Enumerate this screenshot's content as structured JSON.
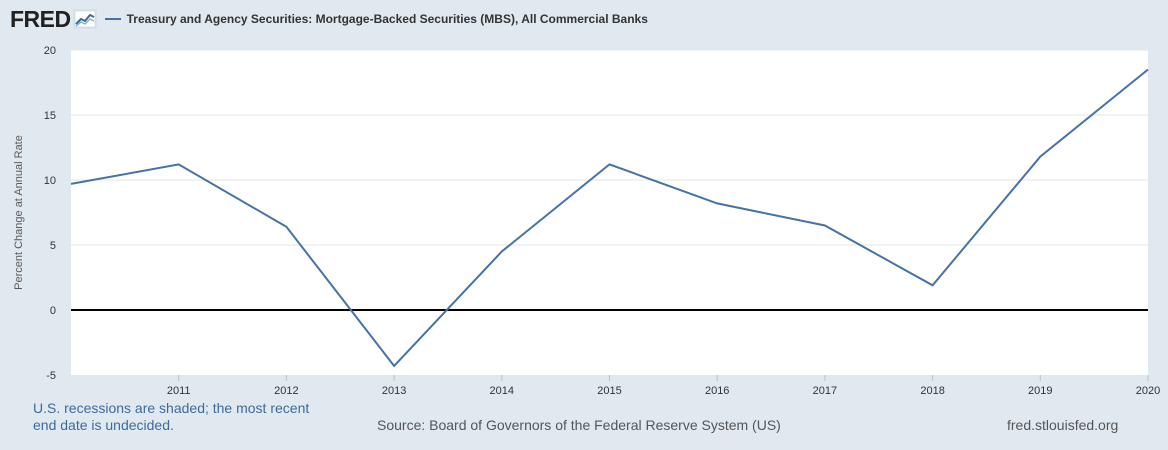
{
  "header": {
    "logo_text": "FRED",
    "logo_mark": "fred-graph-icon"
  },
  "footer": {
    "recession_note": "U.S. recessions are shaded; the most recent end date is undecided.",
    "source": "Source: Board of Governors of the Federal Reserve System (US)",
    "url": "fred.stlouisfed.org"
  },
  "colors": {
    "series": "#4572a7",
    "background": "#e1e9f0",
    "plot": "#ffffff",
    "zero_line": "#000000"
  },
  "chart_data": {
    "type": "line",
    "title": "",
    "xlabel": "",
    "ylabel": "Percent Change at Annual Rate",
    "x": [
      2010,
      2011,
      2012,
      2013,
      2014,
      2015,
      2016,
      2017,
      2018,
      2019,
      2020
    ],
    "x_tick_labels": [
      "2011",
      "2012",
      "2013",
      "2014",
      "2015",
      "2016",
      "2017",
      "2018",
      "2019",
      "2020"
    ],
    "y_ticks": [
      -5,
      0,
      5,
      10,
      15,
      20
    ],
    "ylim": [
      -5,
      20
    ],
    "xlim": [
      2010,
      2020
    ],
    "grid": true,
    "legend_position": "top-left",
    "series": [
      {
        "name": "Treasury and Agency Securities: Mortgage-Backed Securities (MBS), All Commercial Banks",
        "values": [
          9.7,
          11.2,
          6.4,
          -4.3,
          4.5,
          11.2,
          8.2,
          6.5,
          1.9,
          11.8,
          18.5
        ]
      }
    ]
  }
}
